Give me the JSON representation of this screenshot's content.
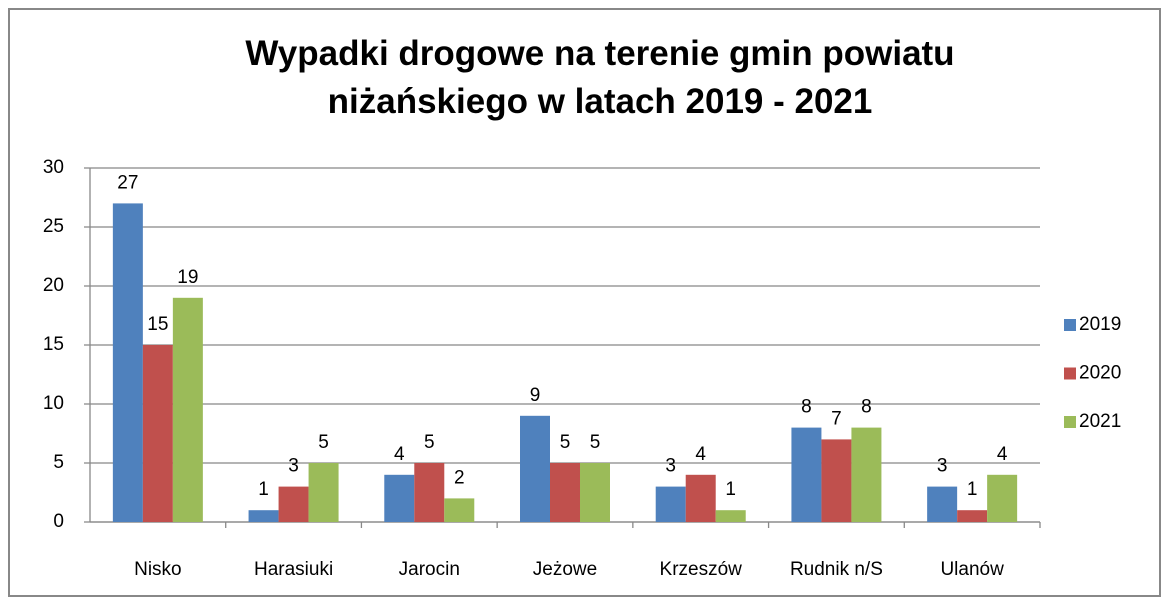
{
  "chart_data": {
    "type": "bar",
    "title": "Wypadki drogowe na terenie gmin powiatu niżańskiego w latach 2019 - 2021",
    "categories": [
      "Nisko",
      "Harasiuki",
      "Jarocin",
      "Jeżowe",
      "Krzeszów",
      "Rudnik n/S",
      "Ulanów"
    ],
    "series": [
      {
        "name": "2019",
        "color": "#4f81bd",
        "values": [
          27,
          1,
          4,
          9,
          3,
          8,
          3
        ]
      },
      {
        "name": "2020",
        "color": "#c0504d",
        "values": [
          15,
          3,
          5,
          5,
          4,
          7,
          1
        ]
      },
      {
        "name": "2021",
        "color": "#9bbb59",
        "values": [
          19,
          5,
          2,
          5,
          1,
          8,
          4
        ]
      }
    ],
    "ylim": [
      0,
      30
    ],
    "yticks": [
      0,
      5,
      10,
      15,
      20,
      25,
      30
    ],
    "grid": true,
    "legend": "right"
  }
}
